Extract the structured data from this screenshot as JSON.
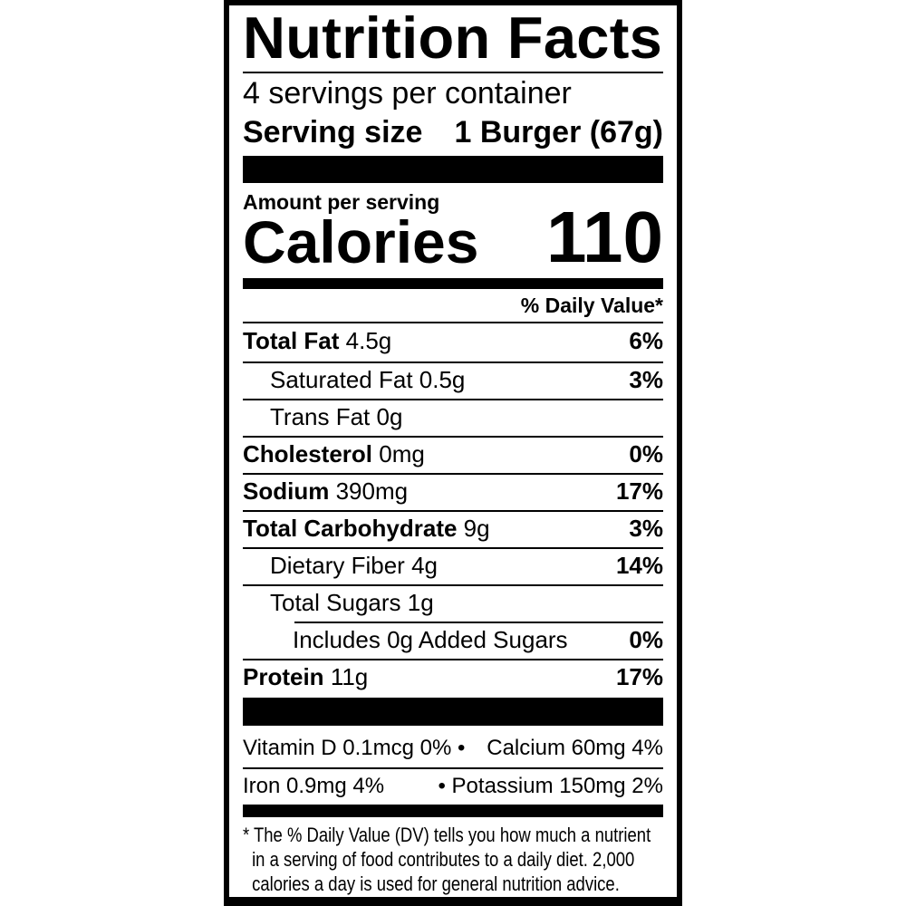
{
  "title": "Nutrition Facts",
  "servings_per_container": "4 servings per container",
  "serving_size": {
    "label": "Serving size",
    "value": "1 Burger (67g)"
  },
  "amount_per_serving": "Amount per serving",
  "calories": {
    "label": "Calories",
    "value": "110"
  },
  "daily_value_header": "% Daily Value*",
  "nutrients": [
    {
      "name": "Total Fat",
      "amount": "4.5g",
      "dv": "6%"
    },
    {
      "name": "Saturated Fat",
      "amount": "0.5g",
      "dv": "3%"
    },
    {
      "name": "Trans Fat",
      "amount": "0g",
      "dv": ""
    },
    {
      "name": "Cholesterol",
      "amount": "0mg",
      "dv": "0%"
    },
    {
      "name": "Sodium",
      "amount": "390mg",
      "dv": "17%"
    },
    {
      "name": "Total Carbohydrate",
      "amount": "9g",
      "dv": "3%"
    },
    {
      "name": "Dietary Fiber",
      "amount": "4g",
      "dv": "14%"
    },
    {
      "name": "Total Sugars",
      "amount": "1g",
      "dv": ""
    },
    {
      "name": "Includes 0g Added Sugars",
      "amount": "",
      "dv": "0%"
    },
    {
      "name": "Protein",
      "amount": "11g",
      "dv": "17%"
    }
  ],
  "vitamins": [
    [
      "Vitamin D 0.1mcg 0% •",
      "Calcium 60mg 4%"
    ],
    [
      "Iron 0.9mg 4%",
      "• Potassium 150mg 2%"
    ]
  ],
  "footnote": [
    "* The % Daily Value (DV) tells you how much a nutrient",
    "in a serving of food contributes to a daily diet. 2,000",
    "calories a day is used for general nutrition advice."
  ]
}
